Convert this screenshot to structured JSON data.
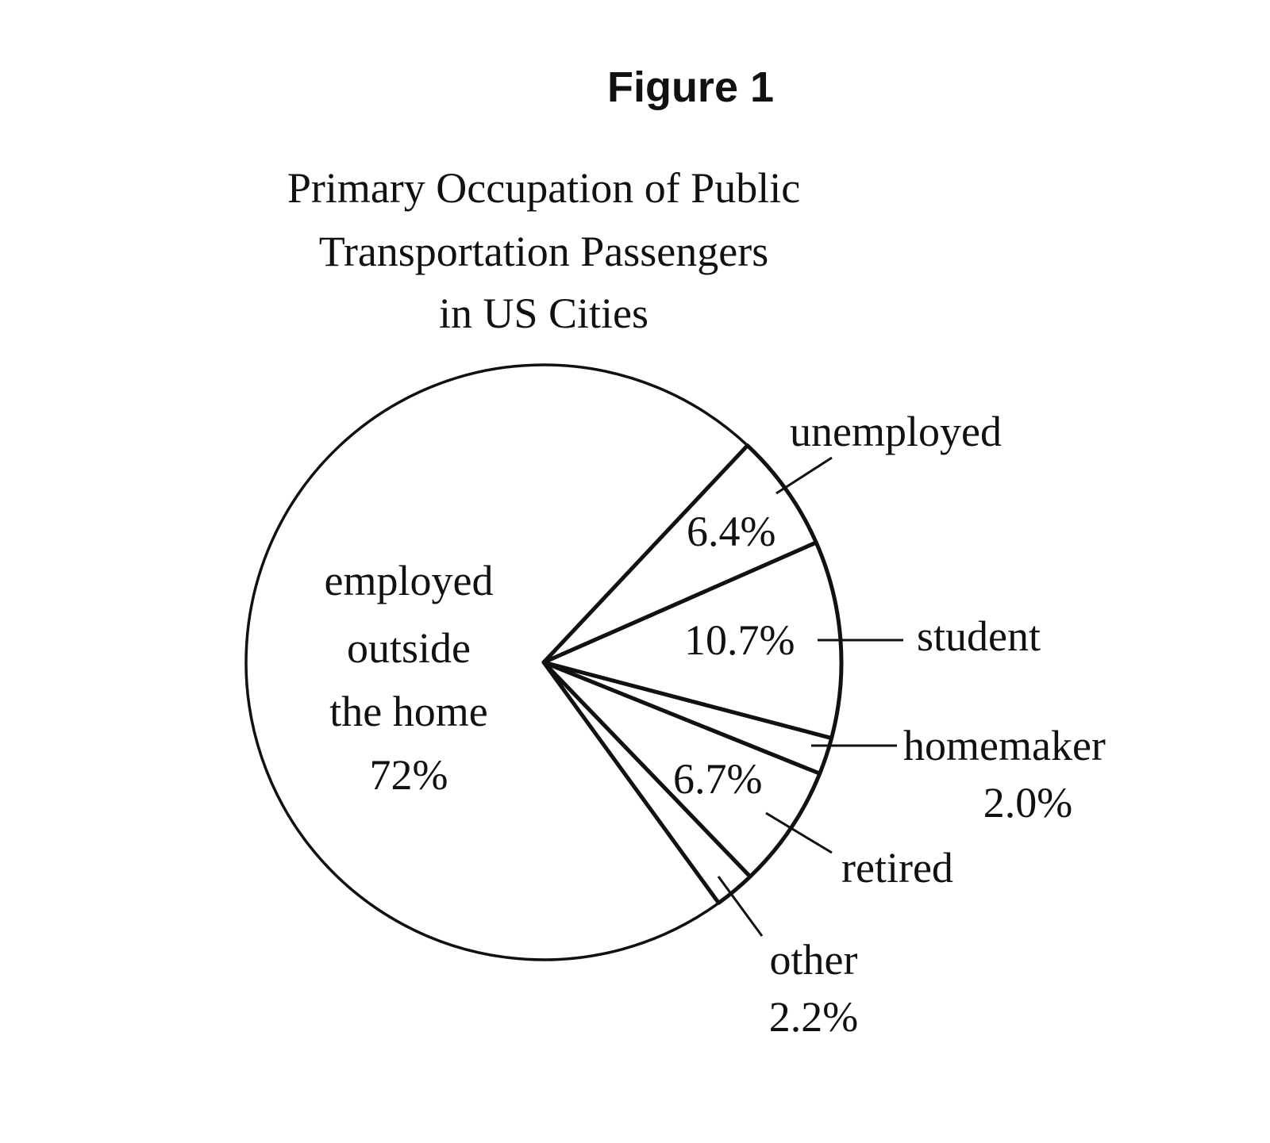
{
  "figure_label": "Figure 1",
  "chart_data": {
    "type": "pie",
    "title_lines": [
      "Primary Occupation of Public",
      "Transportation Passengers",
      "in US Cities"
    ],
    "slices": [
      {
        "label": "unemployed",
        "value": 6.4,
        "value_label": "6.4%"
      },
      {
        "label": "student",
        "value": 10.7,
        "value_label": "10.7%"
      },
      {
        "label": "homemaker",
        "value": 2.0,
        "value_label": "2.0%"
      },
      {
        "label": "retired",
        "value": 6.7,
        "value_label": "6.7%"
      },
      {
        "label": "other",
        "value": 2.2,
        "value_label": "2.2%"
      },
      {
        "label_lines": [
          "employed",
          "outside",
          "the home"
        ],
        "value": 72,
        "value_label": "72%"
      }
    ],
    "colors": {
      "fill": "#ffffff",
      "stroke": "#111111"
    }
  }
}
